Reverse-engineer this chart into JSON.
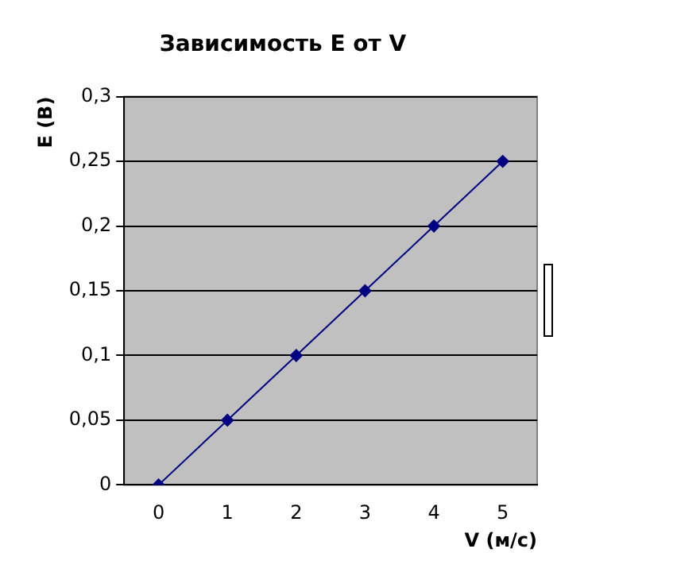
{
  "chart_data": {
    "type": "line",
    "title": "Зависимость E от V",
    "xlabel": "V (м/с)",
    "ylabel": "E (В)",
    "categories": [
      "0",
      "1",
      "2",
      "3",
      "4",
      "5"
    ],
    "series": [
      {
        "color": "#000080",
        "values": [
          0,
          0.05,
          0.1,
          0.15,
          0.2,
          0.25
        ]
      }
    ],
    "ylim": [
      0,
      0.3
    ],
    "yticks": [
      0,
      {
        "value": 0.05,
        "label": "0,05"
      },
      {
        "value": 0.1,
        "label": "0,1"
      },
      {
        "value": 0.15,
        "label": "0,15"
      },
      {
        "value": 0.2,
        "label": "0,2"
      },
      {
        "value": 0.25,
        "label": "0,25"
      },
      {
        "value": 0.3,
        "label": "0,3"
      }
    ],
    "grid": "y",
    "marker": "diamond",
    "line_style": "solid"
  }
}
